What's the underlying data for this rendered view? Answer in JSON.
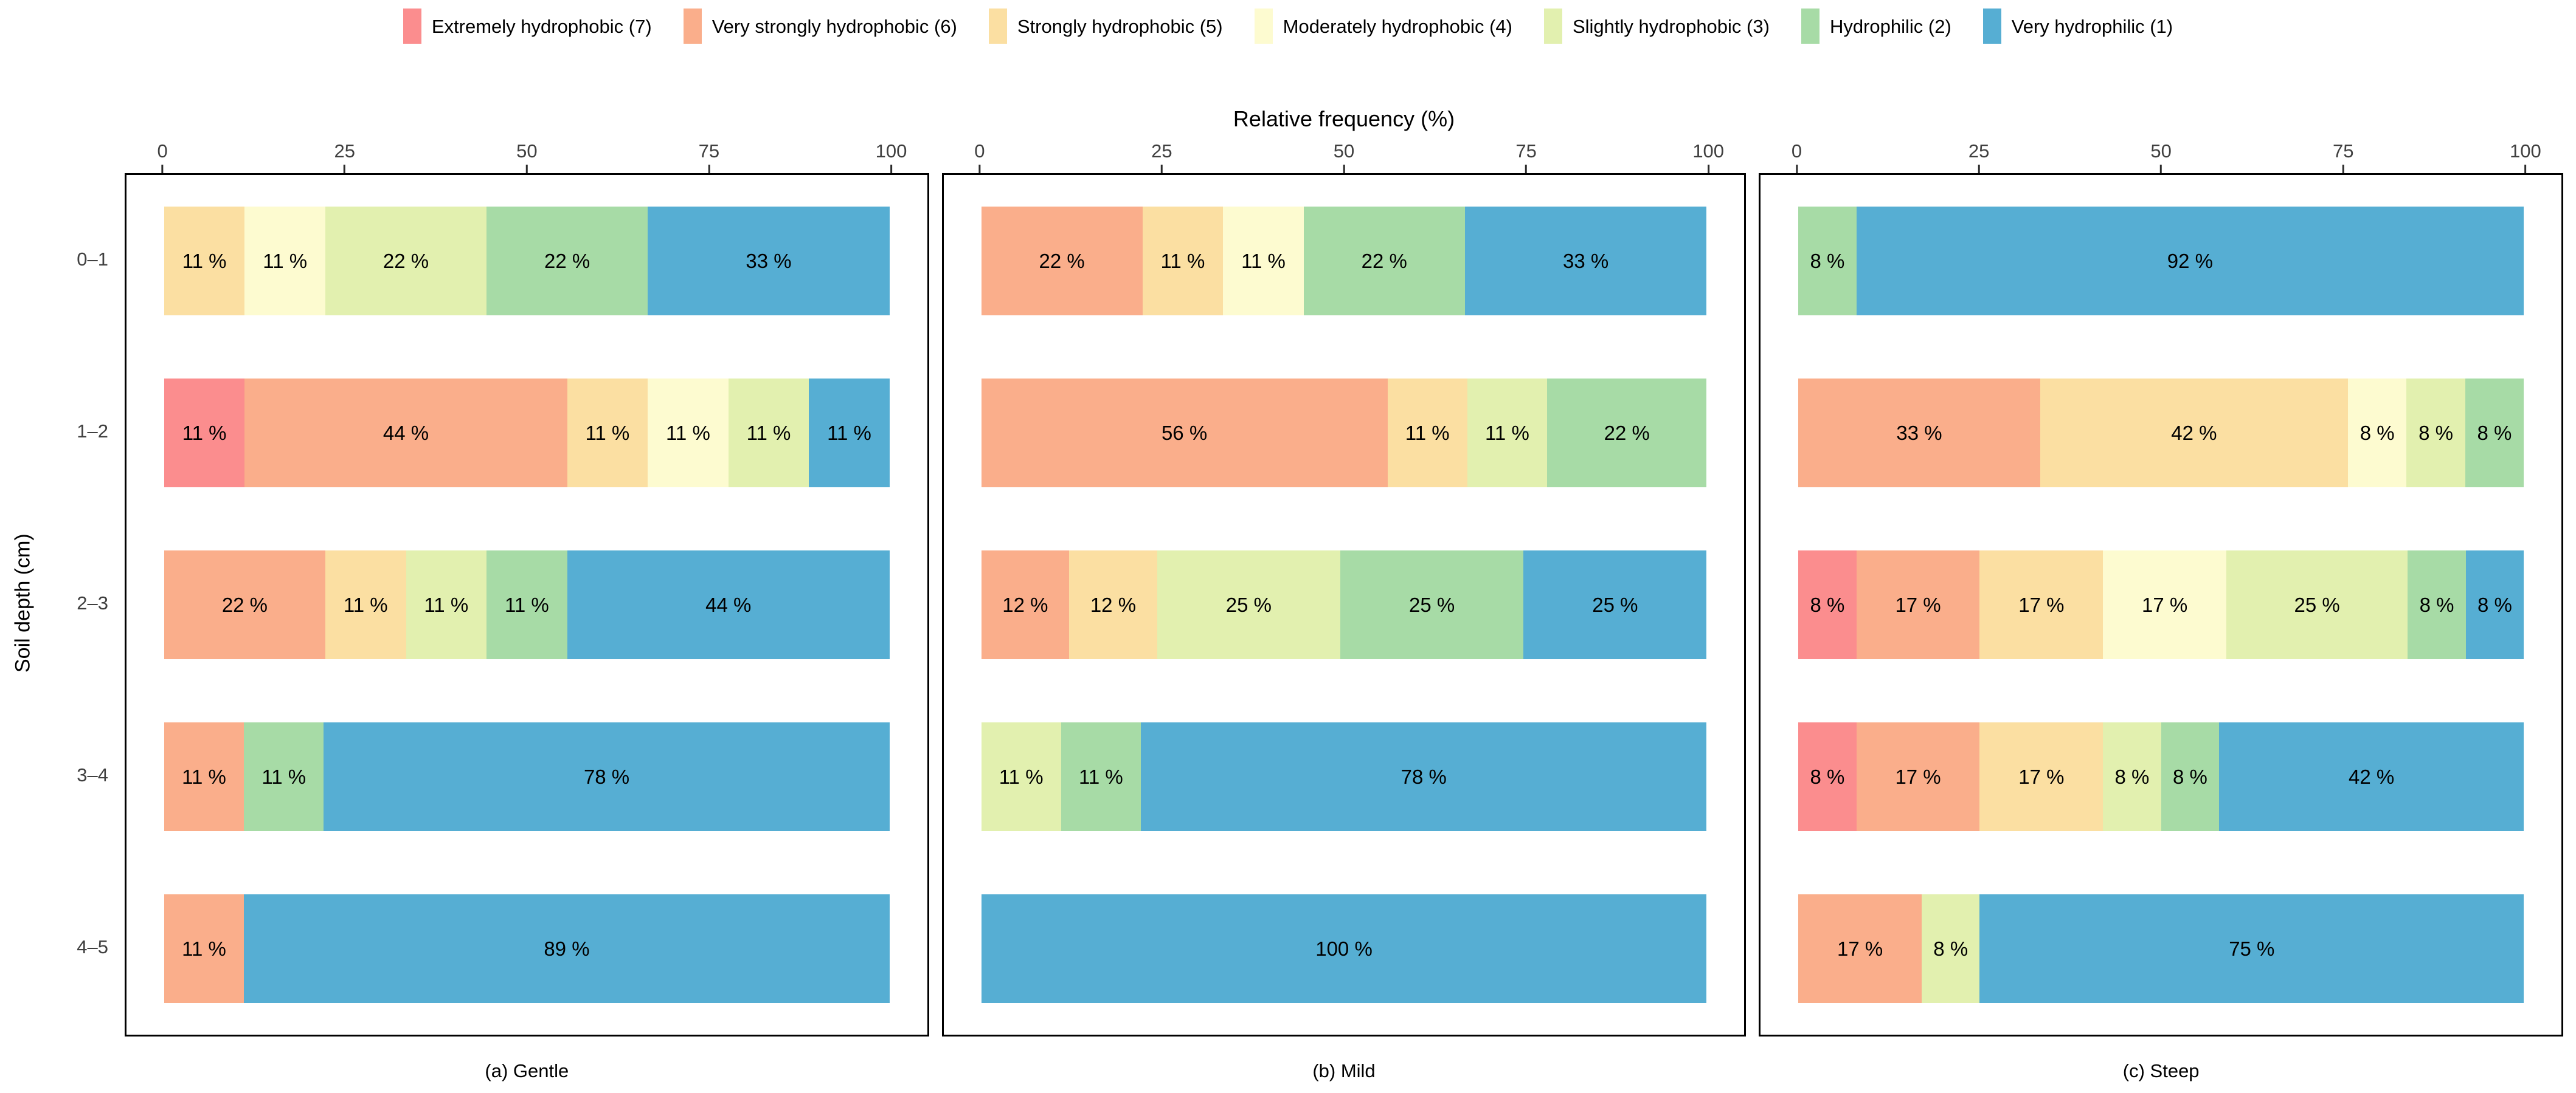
{
  "axis": {
    "x_title": "Relative frequency (%)",
    "y_title": "Soil depth (cm)"
  },
  "chart_data": {
    "type": "bar",
    "subtype": "horizontal-stacked-percentage",
    "title": "Relative frequency (%)",
    "xlabel": "Relative frequency (%)",
    "ylabel": "Soil depth (cm)",
    "xlim": [
      0,
      100
    ],
    "xticks": [
      "0",
      "25",
      "50",
      "75",
      "100"
    ],
    "grid": false,
    "legend_position": "top-center",
    "value_label_suffix": " %",
    "categories": [
      "0–1",
      "1–2",
      "2–3",
      "3–4",
      "4–5"
    ],
    "classes": [
      {
        "id": 7,
        "label": "Extremely hydrophobic (7)",
        "color": "#FB8D8E"
      },
      {
        "id": 6,
        "label": "Very strongly hydrophobic (6)",
        "color": "#FAAE8B"
      },
      {
        "id": 5,
        "label": "Strongly hydrophobic (5)",
        "color": "#FBDFA2"
      },
      {
        "id": 4,
        "label": "Moderately hydrophobic (4)",
        "color": "#FDFBD0"
      },
      {
        "id": 3,
        "label": "Slightly hydrophobic (3)",
        "color": "#E2F0AF"
      },
      {
        "id": 2,
        "label": "Hydrophilic (2)",
        "color": "#A7DBA6"
      },
      {
        "id": 1,
        "label": "Very hydrophilic (1)",
        "color": "#56AED3"
      }
    ],
    "panels": [
      {
        "caption": "(a) Gentle",
        "rows": [
          {
            "depth": "0–1",
            "segments": [
              {
                "class": 5,
                "value": 11
              },
              {
                "class": 4,
                "value": 11
              },
              {
                "class": 3,
                "value": 22
              },
              {
                "class": 2,
                "value": 22
              },
              {
                "class": 1,
                "value": 33
              }
            ]
          },
          {
            "depth": "1–2",
            "segments": [
              {
                "class": 7,
                "value": 11
              },
              {
                "class": 6,
                "value": 44
              },
              {
                "class": 5,
                "value": 11
              },
              {
                "class": 4,
                "value": 11
              },
              {
                "class": 3,
                "value": 11
              },
              {
                "class": 1,
                "value": 11
              }
            ]
          },
          {
            "depth": "2–3",
            "segments": [
              {
                "class": 6,
                "value": 22
              },
              {
                "class": 5,
                "value": 11
              },
              {
                "class": 3,
                "value": 11
              },
              {
                "class": 2,
                "value": 11
              },
              {
                "class": 1,
                "value": 44
              }
            ]
          },
          {
            "depth": "3–4",
            "segments": [
              {
                "class": 6,
                "value": 11
              },
              {
                "class": 2,
                "value": 11
              },
              {
                "class": 1,
                "value": 78
              }
            ]
          },
          {
            "depth": "4–5",
            "segments": [
              {
                "class": 6,
                "value": 11
              },
              {
                "class": 1,
                "value": 89
              }
            ]
          }
        ]
      },
      {
        "caption": "(b) Mild",
        "rows": [
          {
            "depth": "0–1",
            "segments": [
              {
                "class": 6,
                "value": 22
              },
              {
                "class": 5,
                "value": 11
              },
              {
                "class": 4,
                "value": 11
              },
              {
                "class": 2,
                "value": 22
              },
              {
                "class": 1,
                "value": 33
              }
            ]
          },
          {
            "depth": "1–2",
            "segments": [
              {
                "class": 6,
                "value": 56
              },
              {
                "class": 5,
                "value": 11
              },
              {
                "class": 3,
                "value": 11
              },
              {
                "class": 2,
                "value": 22
              }
            ]
          },
          {
            "depth": "2–3",
            "segments": [
              {
                "class": 6,
                "value": 12
              },
              {
                "class": 5,
                "value": 12
              },
              {
                "class": 3,
                "value": 25
              },
              {
                "class": 2,
                "value": 25
              },
              {
                "class": 1,
                "value": 25
              }
            ]
          },
          {
            "depth": "3–4",
            "segments": [
              {
                "class": 3,
                "value": 11
              },
              {
                "class": 2,
                "value": 11
              },
              {
                "class": 1,
                "value": 78
              }
            ]
          },
          {
            "depth": "4–5",
            "segments": [
              {
                "class": 1,
                "value": 100
              }
            ]
          }
        ]
      },
      {
        "caption": "(c) Steep",
        "rows": [
          {
            "depth": "0–1",
            "segments": [
              {
                "class": 2,
                "value": 8
              },
              {
                "class": 1,
                "value": 92
              }
            ]
          },
          {
            "depth": "1–2",
            "segments": [
              {
                "class": 6,
                "value": 33
              },
              {
                "class": 5,
                "value": 42
              },
              {
                "class": 4,
                "value": 8
              },
              {
                "class": 3,
                "value": 8
              },
              {
                "class": 2,
                "value": 8
              }
            ]
          },
          {
            "depth": "2–3",
            "segments": [
              {
                "class": 7,
                "value": 8
              },
              {
                "class": 6,
                "value": 17
              },
              {
                "class": 5,
                "value": 17
              },
              {
                "class": 4,
                "value": 17
              },
              {
                "class": 3,
                "value": 25
              },
              {
                "class": 2,
                "value": 8
              },
              {
                "class": 1,
                "value": 8
              }
            ]
          },
          {
            "depth": "3–4",
            "segments": [
              {
                "class": 7,
                "value": 8
              },
              {
                "class": 6,
                "value": 17
              },
              {
                "class": 5,
                "value": 17
              },
              {
                "class": 3,
                "value": 8
              },
              {
                "class": 2,
                "value": 8
              },
              {
                "class": 1,
                "value": 42
              }
            ]
          },
          {
            "depth": "4–5",
            "segments": [
              {
                "class": 6,
                "value": 17
              },
              {
                "class": 3,
                "value": 8
              },
              {
                "class": 1,
                "value": 75
              }
            ]
          }
        ]
      }
    ]
  }
}
